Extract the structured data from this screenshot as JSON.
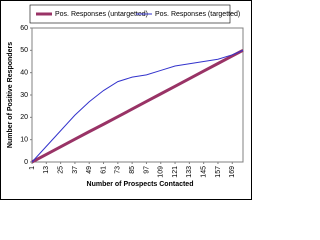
{
  "chart_data": {
    "type": "line",
    "x_label": "Number of Prospects Contacted",
    "y_label": "Number of Positive Responders",
    "x": [
      1,
      13,
      25,
      37,
      49,
      61,
      73,
      85,
      97,
      109,
      121,
      133,
      145,
      157,
      169,
      178
    ],
    "series": [
      {
        "name": "Pos. Responses (untargetted)",
        "color": "#993366",
        "width": 3,
        "values": [
          0,
          3.4,
          6.8,
          10.2,
          13.6,
          16.9,
          20.3,
          23.7,
          27.1,
          30.5,
          33.9,
          37.3,
          40.7,
          44.1,
          47.5,
          50
        ]
      },
      {
        "name": "Pos. Responses (targetted)",
        "color": "#3333cc",
        "width": 1,
        "values": [
          0,
          7,
          14,
          21,
          27,
          32,
          36,
          38,
          39,
          41,
          43,
          44,
          45,
          46,
          48,
          50
        ]
      }
    ],
    "xlim": [
      1,
      178
    ],
    "xticks": [
      1,
      13,
      25,
      37,
      49,
      61,
      73,
      85,
      97,
      109,
      121,
      133,
      145,
      157,
      169
    ],
    "ylim": [
      0,
      60
    ],
    "yticks": [
      0,
      10,
      20,
      30,
      40,
      50,
      60
    ],
    "grid": false,
    "legend": "top"
  }
}
